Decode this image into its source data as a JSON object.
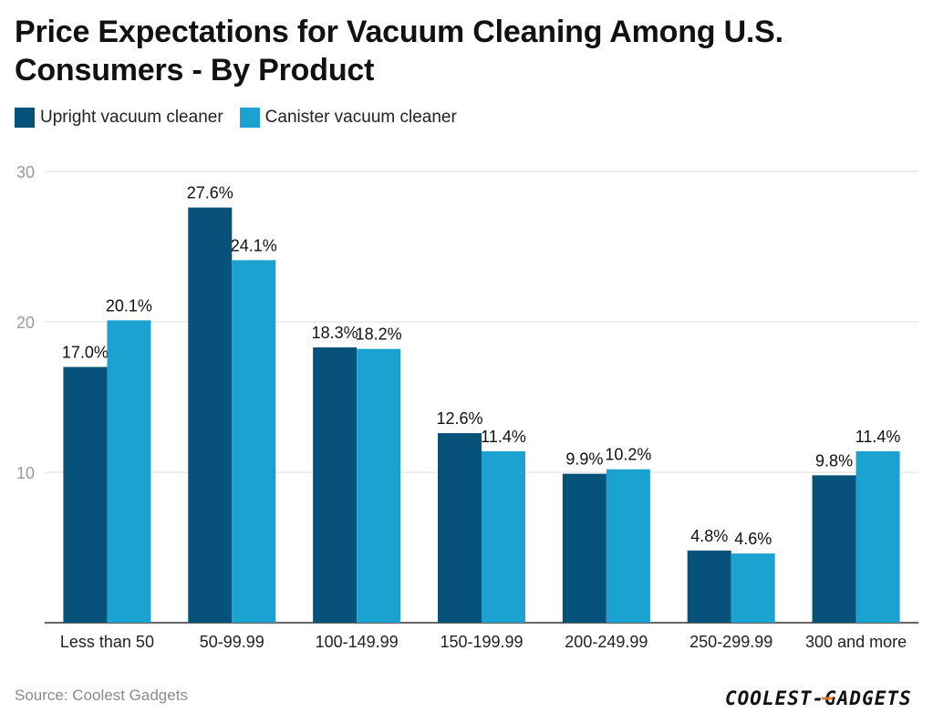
{
  "chart_data": {
    "type": "bar",
    "title": "Price Expectations for Vacuum Cleaning Among U.S. Consumers - By Product",
    "categories": [
      "Less than 50",
      "50-99.99",
      "100-149.99",
      "150-199.99",
      "200-249.99",
      "250-299.99",
      "300 and more"
    ],
    "series": [
      {
        "name": "Upright vacuum cleaner",
        "values": [
          17.0,
          27.6,
          18.3,
          12.6,
          9.9,
          4.8,
          9.8
        ],
        "color": "#06527a"
      },
      {
        "name": "Canister vacuum cleaner",
        "values": [
          20.1,
          24.1,
          18.2,
          11.4,
          10.2,
          4.6,
          11.4
        ],
        "color": "#1ba2d0"
      }
    ],
    "value_suffix": "%",
    "ylim": [
      0,
      30
    ],
    "yticks": [
      10,
      20,
      30
    ],
    "xlabel": "",
    "ylabel": "",
    "grid": true,
    "legend_position": "top-left"
  },
  "source": "Source: Coolest Gadgets",
  "logo_text": "COOLEST-GADGETS"
}
